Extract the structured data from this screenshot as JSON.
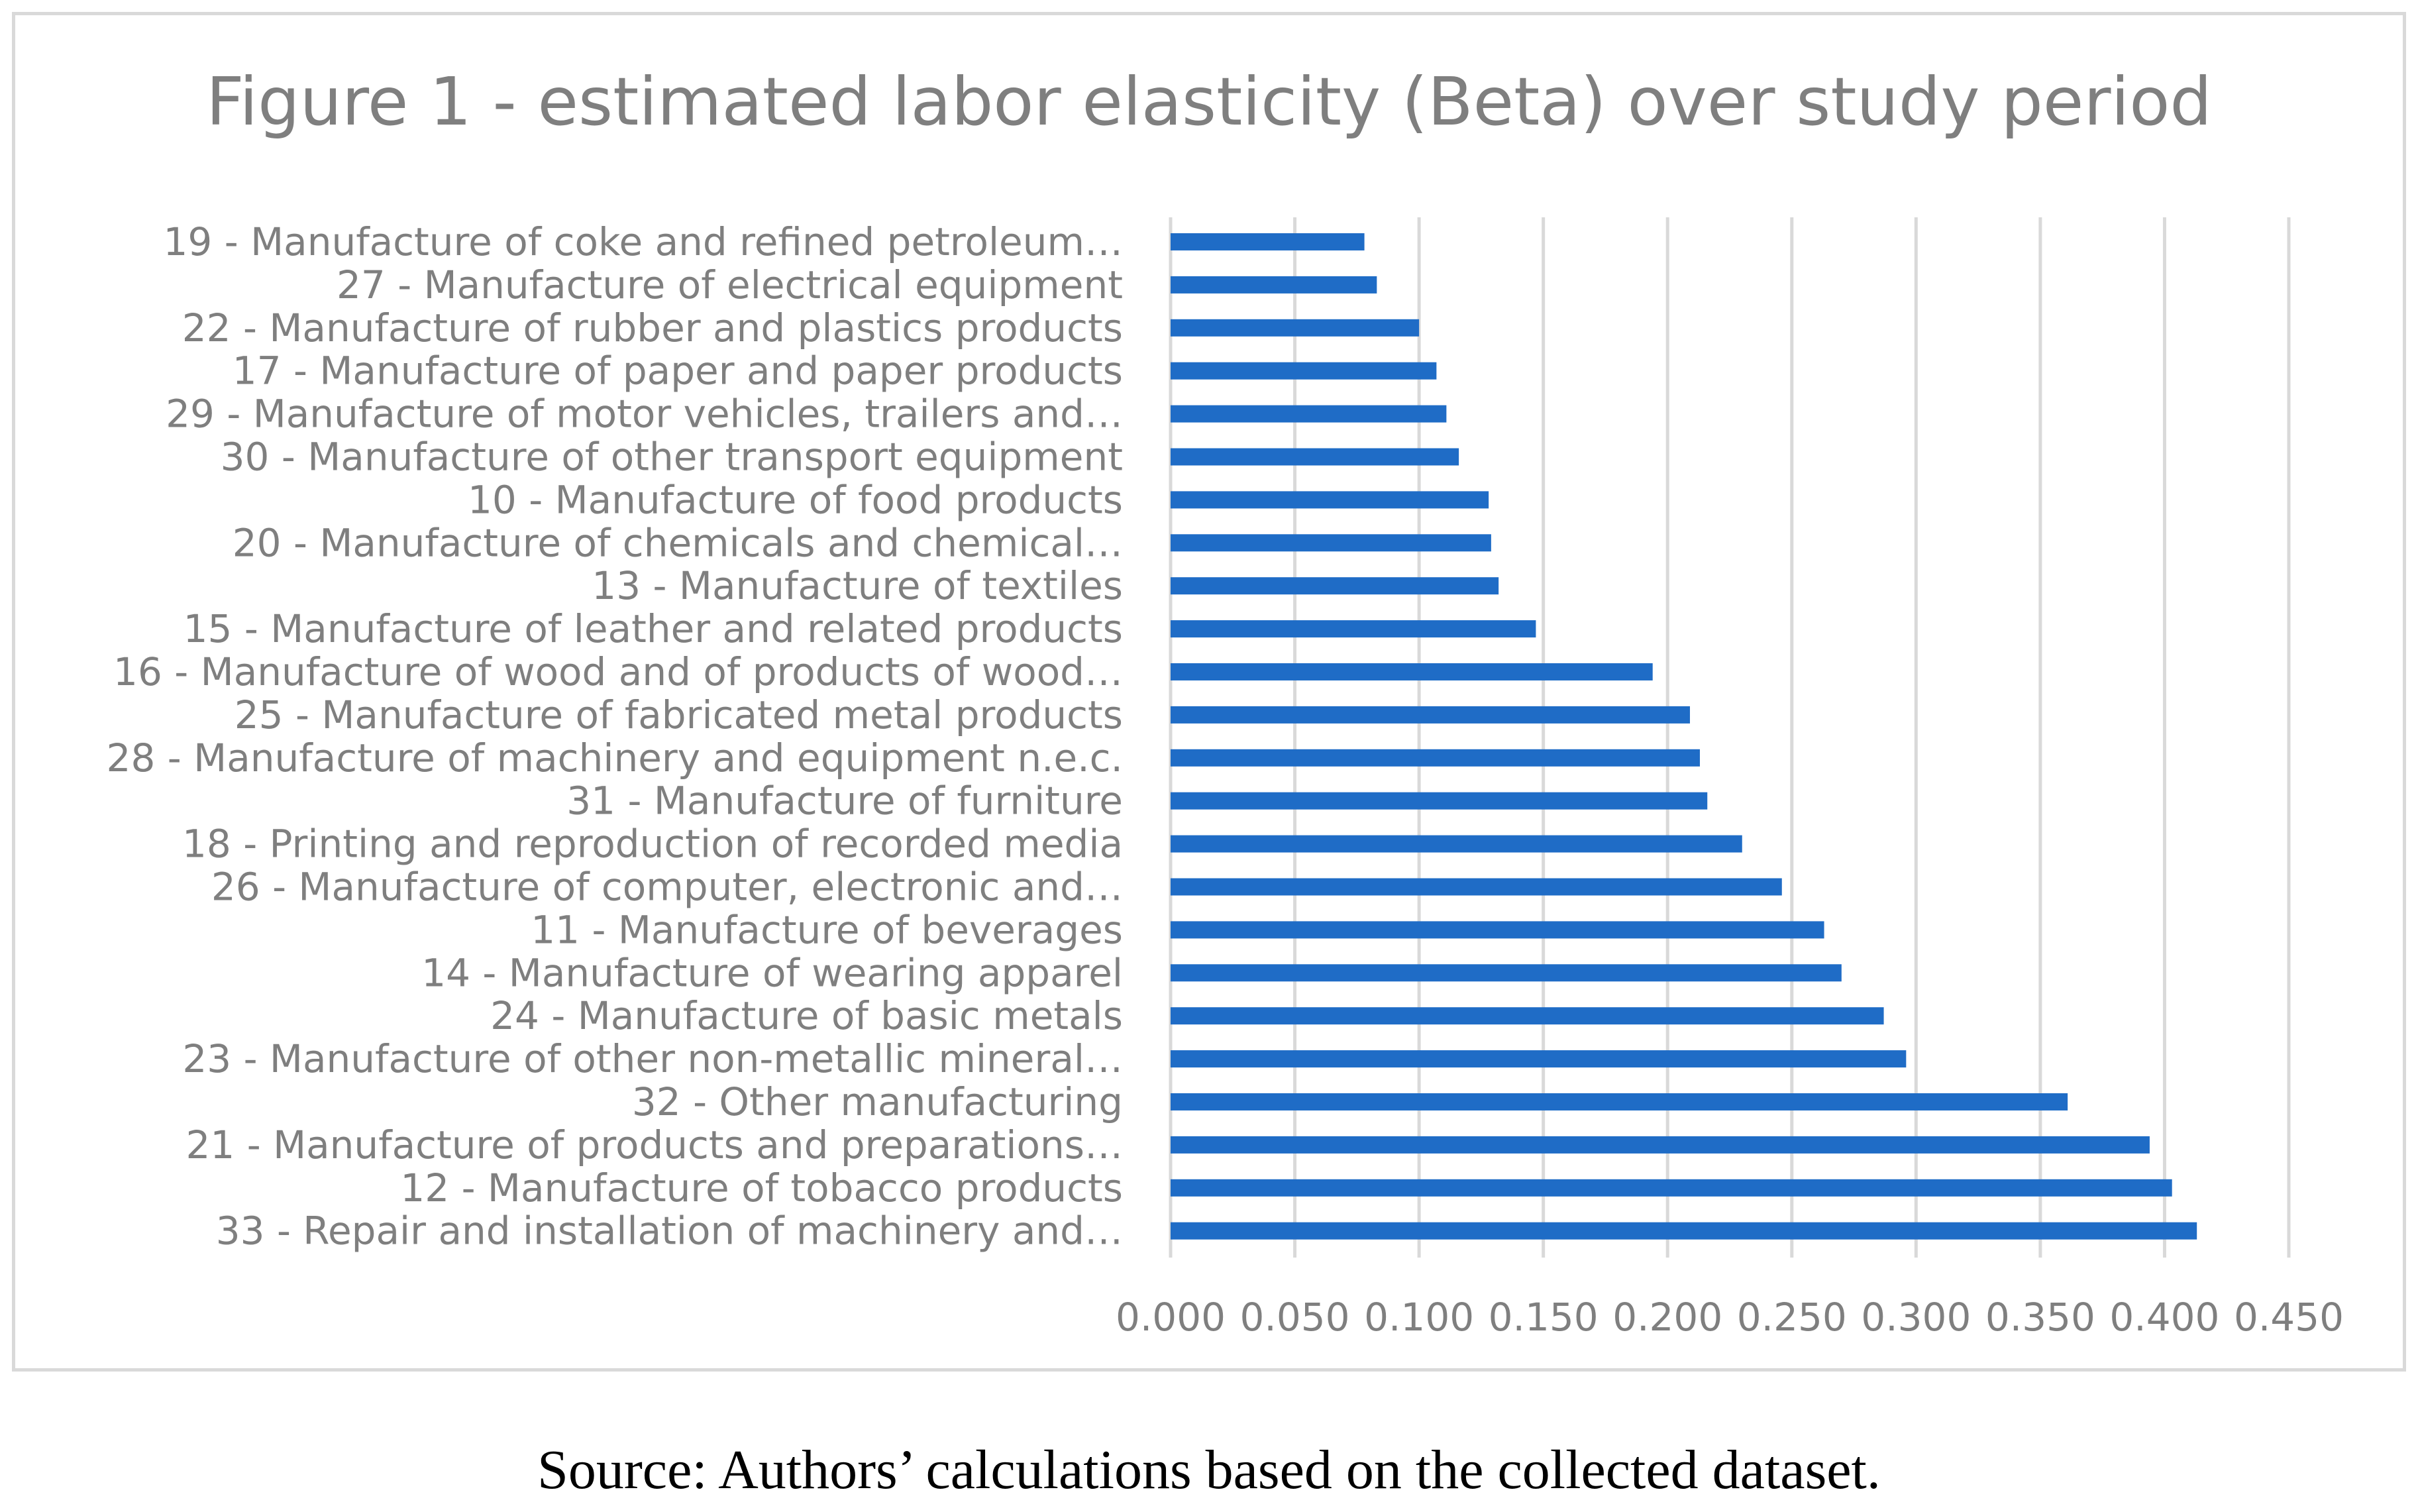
{
  "chart_data": {
    "type": "bar",
    "orientation": "horizontal",
    "title": "Figure 1 - estimated labor elasticity (Beta) over study period",
    "xlabel": "",
    "ylabel": "",
    "xlim": [
      0,
      0.45
    ],
    "x_ticks": [
      "0.000",
      "0.050",
      "0.100",
      "0.150",
      "0.200",
      "0.250",
      "0.300",
      "0.350",
      "0.400",
      "0.450"
    ],
    "x_tick_values": [
      0,
      0.05,
      0.1,
      0.15,
      0.2,
      0.25,
      0.3,
      0.35,
      0.4,
      0.45
    ],
    "grid": true,
    "legend": "none",
    "bar_color": "#1f6cc6",
    "categories": [
      "19 - Manufacture of coke and refined petroleum…",
      "27 - Manufacture of electrical equipment",
      "22 - Manufacture of rubber and plastics products",
      "17 - Manufacture of paper and paper products",
      "29 - Manufacture of motor vehicles, trailers and…",
      "30 - Manufacture of other transport equipment",
      "10 - Manufacture of food products",
      "20 - Manufacture of chemicals and chemical…",
      "13 - Manufacture of textiles",
      "15 - Manufacture of leather and related products",
      "16 - Manufacture of wood and of products of wood…",
      "25 - Manufacture of fabricated metal products",
      "28 - Manufacture of machinery and equipment n.e.c.",
      "31 - Manufacture of furniture",
      "18 - Printing and reproduction of recorded media",
      "26 - Manufacture of computer, electronic and…",
      "11 - Manufacture of beverages",
      "14 - Manufacture of wearing apparel",
      "24 - Manufacture of basic metals",
      "23 - Manufacture of other non-metallic mineral…",
      "32 - Other manufacturing",
      "21 - Manufacture of products and preparations…",
      "12 - Manufacture of tobacco products",
      "33 - Repair and installation of machinery and…"
    ],
    "values": [
      0.078,
      0.083,
      0.1,
      0.107,
      0.111,
      0.116,
      0.128,
      0.129,
      0.132,
      0.147,
      0.194,
      0.209,
      0.213,
      0.216,
      0.23,
      0.246,
      0.263,
      0.27,
      0.287,
      0.296,
      0.361,
      0.394,
      0.403,
      0.413
    ]
  },
  "source_note": "Source: Authors’ calculations based on the collected dataset."
}
